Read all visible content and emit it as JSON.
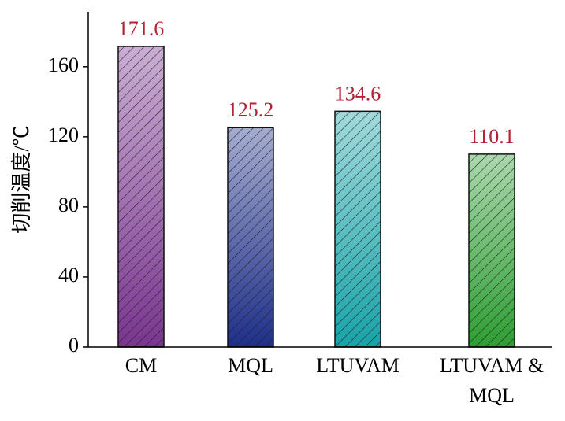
{
  "chart_data": {
    "type": "bar",
    "y_label": "切削温度/℃",
    "categories": [
      "CM",
      "MQL",
      "LTUVAM",
      "LTUVAM & MQL"
    ],
    "values": [
      171.6,
      125.2,
      134.6,
      110.1
    ],
    "colors": [
      "#7a3590",
      "#1e2f8a",
      "#17a3a8",
      "#2d9e32"
    ],
    "value_label_color": "#b22234",
    "ylim": [
      0,
      190
    ],
    "yticks": [
      0,
      40,
      80,
      120,
      160
    ]
  }
}
